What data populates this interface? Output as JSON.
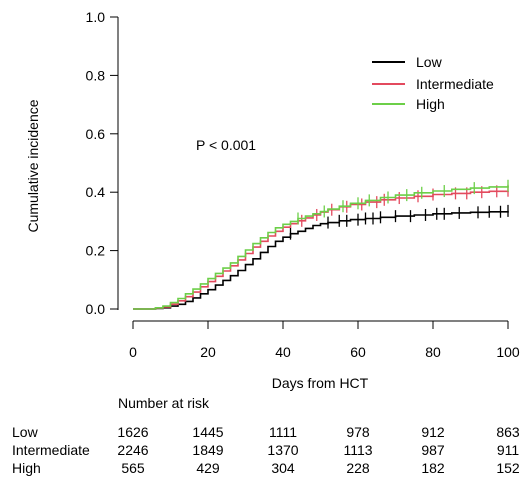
{
  "chart_data": {
    "type": "line",
    "title": "",
    "xlabel": "Days from HCT",
    "ylabel": "Cumulative incidence",
    "xlim": [
      0,
      100
    ],
    "ylim": [
      0,
      1
    ],
    "x_ticks": [
      0,
      20,
      40,
      60,
      80,
      100
    ],
    "y_ticks": [
      0.0,
      0.2,
      0.4,
      0.6,
      0.8,
      1.0
    ],
    "y_tick_labels": [
      "0.0",
      "0.2",
      "0.4",
      "0.6",
      "0.8",
      "1.0"
    ],
    "grid": false,
    "legend_position": "top-right",
    "annotation": "P < 0.001",
    "series": [
      {
        "name": "Low",
        "color": "#000000",
        "points": [
          [
            0,
            0
          ],
          [
            6,
            0.002
          ],
          [
            8,
            0.004
          ],
          [
            10,
            0.01
          ],
          [
            12,
            0.016
          ],
          [
            14,
            0.026
          ],
          [
            16,
            0.038
          ],
          [
            18,
            0.052
          ],
          [
            20,
            0.066
          ],
          [
            22,
            0.082
          ],
          [
            24,
            0.098
          ],
          [
            26,
            0.114
          ],
          [
            28,
            0.132
          ],
          [
            30,
            0.152
          ],
          [
            32,
            0.172
          ],
          [
            34,
            0.194
          ],
          [
            36,
            0.214
          ],
          [
            38,
            0.232
          ],
          [
            40,
            0.246
          ],
          [
            42,
            0.258
          ],
          [
            44,
            0.266
          ],
          [
            46,
            0.276
          ],
          [
            48,
            0.286
          ],
          [
            50,
            0.292
          ],
          [
            52,
            0.296
          ],
          [
            55,
            0.302
          ],
          [
            58,
            0.306
          ],
          [
            62,
            0.31
          ],
          [
            66,
            0.314
          ],
          [
            70,
            0.318
          ],
          [
            75,
            0.322
          ],
          [
            80,
            0.326
          ],
          [
            85,
            0.329
          ],
          [
            90,
            0.331
          ],
          [
            95,
            0.333
          ],
          [
            100,
            0.336
          ]
        ],
        "censor_x": [
          42,
          52,
          55,
          57,
          60,
          62,
          64,
          66,
          70,
          74,
          78,
          81,
          83,
          87,
          92,
          95,
          98,
          100
        ]
      },
      {
        "name": "Intermediate",
        "color": "#e34a5e",
        "points": [
          [
            0,
            0
          ],
          [
            6,
            0.003
          ],
          [
            8,
            0.007
          ],
          [
            10,
            0.016
          ],
          [
            12,
            0.028
          ],
          [
            14,
            0.042
          ],
          [
            16,
            0.058
          ],
          [
            18,
            0.076
          ],
          [
            20,
            0.094
          ],
          [
            22,
            0.112
          ],
          [
            24,
            0.13
          ],
          [
            26,
            0.148
          ],
          [
            28,
            0.168
          ],
          [
            30,
            0.19
          ],
          [
            32,
            0.212
          ],
          [
            34,
            0.232
          ],
          [
            36,
            0.25
          ],
          [
            38,
            0.266
          ],
          [
            40,
            0.28
          ],
          [
            42,
            0.292
          ],
          [
            44,
            0.302
          ],
          [
            46,
            0.312
          ],
          [
            48,
            0.322
          ],
          [
            50,
            0.332
          ],
          [
            52,
            0.34
          ],
          [
            55,
            0.35
          ],
          [
            58,
            0.358
          ],
          [
            62,
            0.366
          ],
          [
            66,
            0.374
          ],
          [
            70,
            0.38
          ],
          [
            75,
            0.386
          ],
          [
            80,
            0.392
          ],
          [
            85,
            0.396
          ],
          [
            90,
            0.4
          ],
          [
            95,
            0.403
          ],
          [
            100,
            0.405
          ]
        ],
        "censor_x": [
          45,
          49,
          53,
          57,
          61,
          65,
          67,
          71,
          76,
          80,
          86,
          89,
          93,
          97,
          100
        ]
      },
      {
        "name": "High",
        "color": "#6ccf48",
        "points": [
          [
            0,
            0
          ],
          [
            6,
            0.004
          ],
          [
            8,
            0.01
          ],
          [
            10,
            0.022
          ],
          [
            12,
            0.036
          ],
          [
            14,
            0.052
          ],
          [
            16,
            0.068
          ],
          [
            18,
            0.086
          ],
          [
            20,
            0.104
          ],
          [
            22,
            0.122
          ],
          [
            24,
            0.14
          ],
          [
            26,
            0.158
          ],
          [
            28,
            0.18
          ],
          [
            30,
            0.202
          ],
          [
            32,
            0.224
          ],
          [
            34,
            0.244
          ],
          [
            36,
            0.262
          ],
          [
            38,
            0.278
          ],
          [
            40,
            0.29
          ],
          [
            42,
            0.3
          ],
          [
            44,
            0.31
          ],
          [
            46,
            0.318
          ],
          [
            48,
            0.326
          ],
          [
            50,
            0.334
          ],
          [
            52,
            0.342
          ],
          [
            55,
            0.352
          ],
          [
            58,
            0.362
          ],
          [
            62,
            0.372
          ],
          [
            66,
            0.382
          ],
          [
            70,
            0.39
          ],
          [
            75,
            0.398
          ],
          [
            80,
            0.404
          ],
          [
            85,
            0.41
          ],
          [
            90,
            0.414
          ],
          [
            95,
            0.418
          ],
          [
            100,
            0.422
          ]
        ],
        "censor_x": [
          44,
          51,
          56,
          60,
          63,
          68,
          73,
          77,
          83,
          91,
          100
        ]
      }
    ],
    "risk_table": {
      "title": "Number at risk",
      "x": [
        0,
        20,
        40,
        60,
        80,
        100
      ],
      "rows": [
        {
          "label": "Low",
          "values": [
            "1626",
            "1445",
            "1111",
            "978",
            "912",
            "863"
          ]
        },
        {
          "label": "Intermediate",
          "values": [
            "2246",
            "1849",
            "1370",
            "1113",
            "987",
            "911"
          ]
        },
        {
          "label": "High",
          "values": [
            "565",
            "429",
            "304",
            "228",
            "182",
            "152"
          ]
        }
      ]
    }
  }
}
